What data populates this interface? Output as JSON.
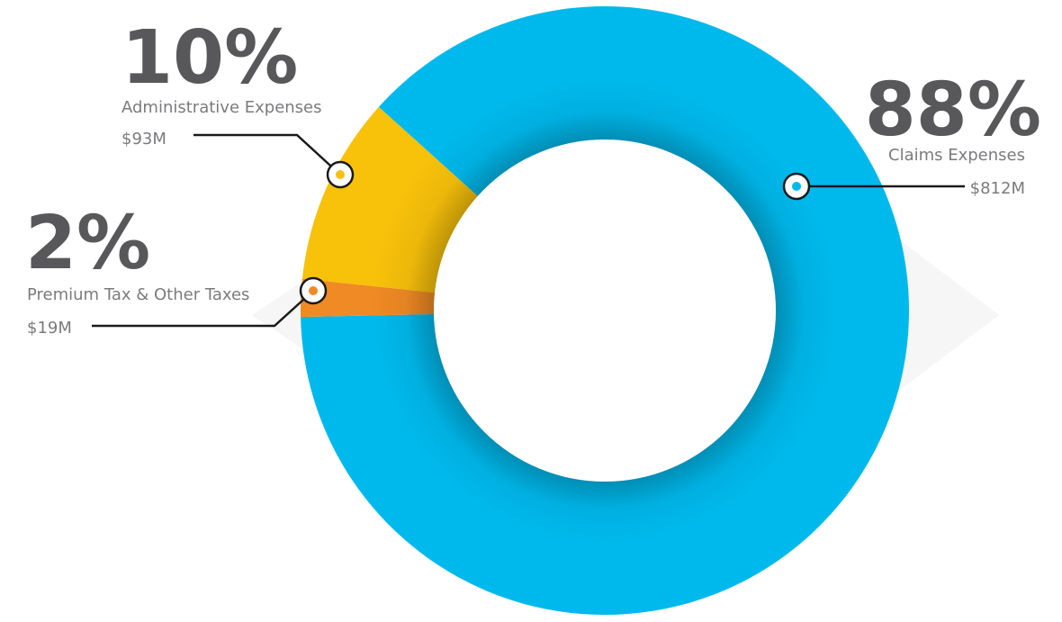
{
  "chart_data": {
    "type": "pie",
    "style": "donut",
    "title": "",
    "grid": false,
    "legend": "none (direct callout labels)",
    "slices": [
      {
        "label": "Claims Expenses",
        "percent": 88,
        "amount": "$812M",
        "color": "#00b9ec"
      },
      {
        "label": "Administrative Expenses",
        "percent": 10,
        "amount": "$93M",
        "color": "#f8c10a"
      },
      {
        "label": "Premium Tax & Other Taxes",
        "percent": 2,
        "amount": "$19M",
        "color": "#f08a24"
      }
    ]
  },
  "labels": {
    "claims": {
      "pct": "88%",
      "name": "Claims Expenses",
      "amount": "$812M"
    },
    "admin": {
      "pct": "10%",
      "name": "Administrative Expenses",
      "amount": "$93M"
    },
    "tax": {
      "pct": "2%",
      "name": "Premium Tax & Other Taxes",
      "amount": "$19M"
    }
  }
}
